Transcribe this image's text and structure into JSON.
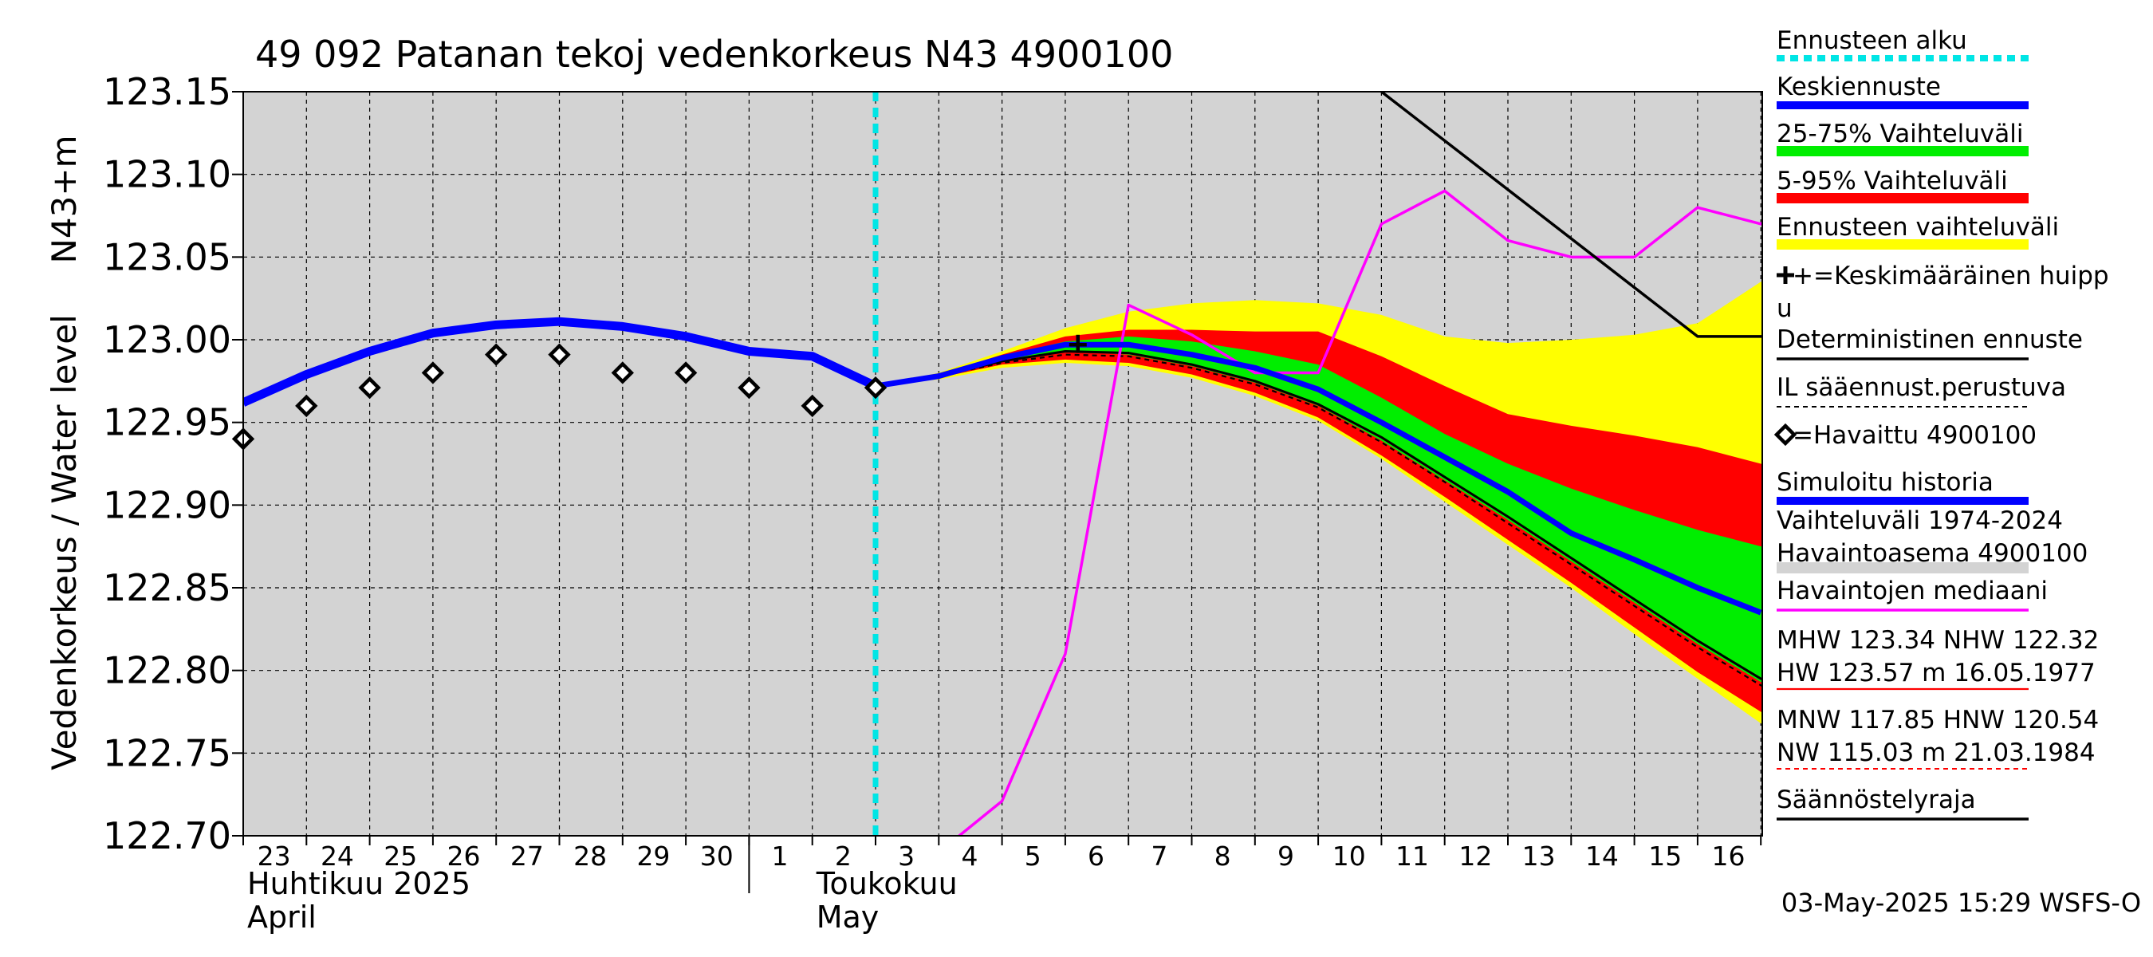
{
  "chart_data": {
    "type": "line",
    "title": "49 092 Patanan tekoj vedenkorkeus N43 4900100",
    "ylabel_left": "Vedenkorkeus / Water level",
    "ylabel_right": "N43+m",
    "ylim": [
      122.7,
      123.15
    ],
    "y_ticks": [
      "123.15",
      "123.10",
      "123.05",
      "123.00",
      "122.95",
      "122.90",
      "122.85",
      "122.80",
      "122.75",
      "122.70"
    ],
    "y_tick_values": [
      123.15,
      123.1,
      123.05,
      123.0,
      122.95,
      122.9,
      122.85,
      122.8,
      122.75,
      122.7
    ],
    "x_start": "23.04.2025",
    "x_ticks": [
      "23",
      "24",
      "25",
      "26",
      "27",
      "28",
      "29",
      "30",
      "1",
      "2",
      "3",
      "4",
      "5",
      "6",
      "7",
      "8",
      "9",
      "10",
      "11",
      "12",
      "13",
      "14",
      "15",
      "16"
    ],
    "month_labels": [
      {
        "line1": "Huhtikuu  2025",
        "line2": "April",
        "day": 0
      },
      {
        "line1": "Toukokuu",
        "line2": "May",
        "day": 9
      }
    ],
    "forecast_start_day": 10.0,
    "series": [
      {
        "name": "Simuloitu historia",
        "color": "#0000ff",
        "points": [
          [
            0,
            122.962
          ],
          [
            1,
            122.979
          ],
          [
            2,
            122.993
          ],
          [
            3,
            123.004
          ],
          [
            4,
            123.009
          ],
          [
            5,
            123.011
          ],
          [
            6,
            123.008
          ],
          [
            7,
            123.002
          ],
          [
            8,
            122.993
          ],
          [
            9,
            122.99
          ],
          [
            10,
            122.972
          ]
        ]
      },
      {
        "name": "Keskiennuste",
        "color": "#0000ff",
        "points": [
          [
            10,
            122.972
          ],
          [
            11,
            122.978
          ],
          [
            12,
            122.989
          ],
          [
            13,
            122.997
          ],
          [
            14,
            122.997
          ],
          [
            15,
            122.991
          ],
          [
            16,
            122.983
          ],
          [
            17,
            122.97
          ],
          [
            18,
            122.95
          ],
          [
            19,
            122.929
          ],
          [
            20,
            122.908
          ],
          [
            21,
            122.883
          ],
          [
            22,
            122.867
          ],
          [
            23,
            122.85
          ],
          [
            24,
            122.835
          ]
        ]
      },
      {
        "name": "Havaittu 4900100",
        "color": "#000000",
        "points": [
          [
            0,
            122.94
          ],
          [
            1,
            122.96
          ],
          [
            2,
            122.971
          ],
          [
            3,
            122.98
          ],
          [
            4,
            122.991
          ],
          [
            5,
            122.991
          ],
          [
            6,
            122.98
          ],
          [
            7,
            122.98
          ],
          [
            8,
            122.971
          ],
          [
            9,
            122.96
          ],
          [
            10,
            122.971
          ]
        ]
      },
      {
        "name": "Havaintojen mediaani",
        "color": "#ff00ff",
        "points": [
          [
            11,
            122.69
          ],
          [
            12,
            122.721
          ],
          [
            13,
            122.81
          ],
          [
            14,
            123.021
          ],
          [
            15,
            123.003
          ],
          [
            16,
            122.98
          ],
          [
            17,
            122.98
          ],
          [
            18,
            123.07
          ],
          [
            19,
            123.09
          ],
          [
            20,
            123.06
          ],
          [
            21,
            123.05
          ],
          [
            22,
            123.05
          ],
          [
            23,
            123.08
          ],
          [
            24,
            123.07
          ],
          [
            25,
            123.11
          ]
        ]
      },
      {
        "name": "Säännöstelyraja",
        "color": "#000000",
        "points": [
          [
            18,
            123.15
          ],
          [
            23,
            123.002
          ],
          [
            25,
            123.002
          ]
        ]
      },
      {
        "name": "Deterministinen ennuste",
        "color": "#000000",
        "points": [
          [
            10,
            122.972
          ],
          [
            11,
            122.978
          ],
          [
            12,
            122.987
          ],
          [
            13,
            122.993
          ],
          [
            14,
            122.992
          ],
          [
            15,
            122.985
          ],
          [
            16,
            122.975
          ],
          [
            17,
            122.961
          ],
          [
            18,
            122.941
          ],
          [
            19,
            122.917
          ],
          [
            20,
            122.893
          ],
          [
            21,
            122.868
          ],
          [
            22,
            122.843
          ],
          [
            23,
            122.818
          ],
          [
            24,
            122.795
          ],
          [
            25,
            122.78
          ]
        ]
      },
      {
        "name": "IL sääennust.perustuva",
        "color": "#000000",
        "points": [
          [
            10,
            122.972
          ],
          [
            11,
            122.978
          ],
          [
            12,
            122.986
          ],
          [
            13,
            122.991
          ],
          [
            14,
            122.99
          ],
          [
            15,
            122.983
          ],
          [
            16,
            122.973
          ],
          [
            17,
            122.959
          ],
          [
            18,
            122.938
          ],
          [
            19,
            122.914
          ],
          [
            20,
            122.889
          ],
          [
            21,
            122.864
          ],
          [
            22,
            122.839
          ],
          [
            23,
            122.814
          ],
          [
            24,
            122.791
          ],
          [
            25,
            122.776
          ]
        ]
      }
    ],
    "bands": [
      {
        "name": "Ennusteen vaihteluväli",
        "color": "#ffff00",
        "upper": [
          [
            10,
            122.972
          ],
          [
            11,
            122.98
          ],
          [
            12,
            122.993
          ],
          [
            13,
            123.007
          ],
          [
            14,
            123.017
          ],
          [
            15,
            123.022
          ],
          [
            16,
            123.024
          ],
          [
            17,
            123.022
          ],
          [
            18,
            123.015
          ],
          [
            19,
            123.002
          ],
          [
            20,
            122.998
          ],
          [
            21,
            123.0
          ],
          [
            22,
            123.003
          ],
          [
            23,
            123.01
          ],
          [
            24,
            123.035
          ],
          [
            25,
            123.07
          ]
        ],
        "lower": [
          [
            10,
            122.972
          ],
          [
            11,
            122.976
          ],
          [
            12,
            122.983
          ],
          [
            13,
            122.986
          ],
          [
            14,
            122.984
          ],
          [
            15,
            122.977
          ],
          [
            16,
            122.966
          ],
          [
            17,
            122.951
          ],
          [
            18,
            122.928
          ],
          [
            19,
            122.902
          ],
          [
            20,
            122.876
          ],
          [
            21,
            122.85
          ],
          [
            22,
            122.822
          ],
          [
            23,
            122.795
          ],
          [
            24,
            122.768
          ],
          [
            25,
            122.74
          ]
        ]
      },
      {
        "name": "5-95% Vaihteluväli",
        "color": "#ff0000",
        "upper": [
          [
            10,
            122.972
          ],
          [
            11,
            122.979
          ],
          [
            12,
            122.991
          ],
          [
            13,
            123.002
          ],
          [
            14,
            123.006
          ],
          [
            15,
            123.006
          ],
          [
            16,
            123.005
          ],
          [
            17,
            123.005
          ],
          [
            18,
            122.99
          ],
          [
            19,
            122.972
          ],
          [
            20,
            122.955
          ],
          [
            21,
            122.948
          ],
          [
            22,
            122.942
          ],
          [
            23,
            122.935
          ],
          [
            24,
            122.925
          ],
          [
            25,
            122.915
          ]
        ],
        "lower": [
          [
            10,
            122.972
          ],
          [
            11,
            122.977
          ],
          [
            12,
            122.985
          ],
          [
            13,
            122.988
          ],
          [
            14,
            122.986
          ],
          [
            15,
            122.979
          ],
          [
            16,
            122.968
          ],
          [
            17,
            122.953
          ],
          [
            18,
            122.93
          ],
          [
            19,
            122.905
          ],
          [
            20,
            122.879
          ],
          [
            21,
            122.853
          ],
          [
            22,
            122.826
          ],
          [
            23,
            122.799
          ],
          [
            24,
            122.775
          ],
          [
            25,
            122.76
          ]
        ]
      },
      {
        "name": "25-75% Vaihteluväli",
        "color": "#00ee00",
        "upper": [
          [
            10,
            122.972
          ],
          [
            11,
            122.978
          ],
          [
            12,
            122.99
          ],
          [
            13,
            122.999
          ],
          [
            14,
            123.002
          ],
          [
            15,
            122.999
          ],
          [
            16,
            122.993
          ],
          [
            17,
            122.985
          ],
          [
            18,
            122.965
          ],
          [
            19,
            122.943
          ],
          [
            20,
            122.925
          ],
          [
            21,
            122.91
          ],
          [
            22,
            122.897
          ],
          [
            23,
            122.885
          ],
          [
            24,
            122.875
          ],
          [
            25,
            122.87
          ]
        ],
        "lower": [
          [
            10,
            122.972
          ],
          [
            11,
            122.977
          ],
          [
            12,
            122.987
          ],
          [
            13,
            122.993
          ],
          [
            14,
            122.991
          ],
          [
            15,
            122.984
          ],
          [
            16,
            122.974
          ],
          [
            17,
            122.96
          ],
          [
            18,
            122.939
          ],
          [
            19,
            122.915
          ],
          [
            20,
            122.891
          ],
          [
            21,
            122.866
          ],
          [
            22,
            122.841
          ],
          [
            23,
            122.816
          ],
          [
            24,
            122.793
          ],
          [
            25,
            122.778
          ]
        ]
      }
    ],
    "mean_peak": {
      "day": 13.2,
      "value": 122.997,
      "error_low": 122.992,
      "error_high": 123.003
    },
    "grid": true,
    "legend_position": "right"
  },
  "legend": {
    "items": [
      {
        "label": "Ennusteen alku",
        "style": "dotted",
        "color": "#00e5e5"
      },
      {
        "label": "Keskiennuste",
        "style": "solid-thick",
        "color": "#0000ff"
      },
      {
        "label": "25-75% Vaihteluväli",
        "style": "band",
        "color": "#00ee00"
      },
      {
        "label": "5-95% Vaihteluväli",
        "style": "band",
        "color": "#ff0000"
      },
      {
        "label": "Ennusteen vaihteluväli",
        "style": "band",
        "color": "#ffff00"
      },
      {
        "label": "+=Keskimääräinen huipp",
        "label2": "u",
        "style": "none"
      },
      {
        "label": "Deterministinen ennuste",
        "style": "solid",
        "color": "#000000"
      },
      {
        "label": "IL sääennust.perustuva",
        "style": "dashed",
        "color": "#000000"
      },
      {
        "label": "=Havaittu 4900100",
        "style": "diamond",
        "color": "#000000"
      },
      {
        "label": "Simuloitu historia",
        "style": "solid-thick",
        "color": "#0000ff"
      },
      {
        "label": "Vaihteluväli 1974-2024",
        "label2": " Havaintoasema 4900100",
        "style": "gray-band",
        "color": "#d3d3d3"
      },
      {
        "label": "Havaintojen mediaani",
        "style": "solid",
        "color": "#ff00ff"
      },
      {
        "label": "MHW 123.34 NHW 122.32",
        "label2": "HW 123.57 m 16.05.1977",
        "style": "solid-thin",
        "color": "#ff0000"
      },
      {
        "label": "MNW 117.85 HNW 120.54",
        "label2": "NW 115.03 m 21.03.1984",
        "style": "dashed-thin",
        "color": "#ff0000"
      },
      {
        "label": "Säännöstelyraja",
        "style": "solid",
        "color": "#000000"
      }
    ]
  },
  "footer": {
    "timestamp": "03-May-2025 15:29 WSFS-O"
  }
}
